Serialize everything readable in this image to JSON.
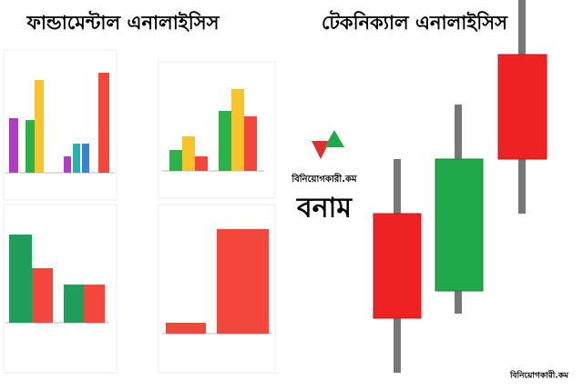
{
  "headings": {
    "left": "ফান্ডামেন্টাল এনালাইসিস",
    "right": "টেকনিক্যাল এনালাইসিস"
  },
  "logo": {
    "brand": "বিনিয়োগকারী.কম",
    "versus": "বনাম"
  },
  "footer": "বিনিয়োগকারী.কম"
}
